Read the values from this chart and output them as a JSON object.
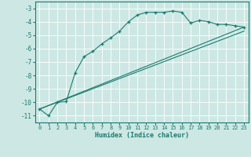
{
  "xlabel": "Humidex (Indice chaleur)",
  "bg_color": "#cde8e4",
  "line_color": "#1a7a6e",
  "grid_color": "#ffffff",
  "xlim": [
    -0.5,
    23.5
  ],
  "ylim": [
    -11.5,
    -2.5
  ],
  "yticks": [
    -11,
    -10,
    -9,
    -8,
    -7,
    -6,
    -5,
    -4,
    -3
  ],
  "xticks": [
    0,
    1,
    2,
    3,
    4,
    5,
    6,
    7,
    8,
    9,
    10,
    11,
    12,
    13,
    14,
    15,
    16,
    17,
    18,
    19,
    20,
    21,
    22,
    23
  ],
  "line1_x": [
    0,
    1,
    2,
    3,
    4,
    5,
    6,
    7,
    8,
    9,
    10,
    11,
    12,
    13,
    14,
    15,
    16,
    17,
    18,
    19,
    20,
    21,
    22,
    23
  ],
  "line1_y": [
    -10.5,
    -11.0,
    -10.0,
    -9.95,
    -7.8,
    -6.6,
    -6.2,
    -5.65,
    -5.2,
    -4.7,
    -4.0,
    -3.5,
    -3.3,
    -3.3,
    -3.3,
    -3.2,
    -3.3,
    -4.1,
    -3.9,
    -4.0,
    -4.2,
    -4.2,
    -4.3,
    -4.4
  ],
  "line2_x": [
    0,
    23
  ],
  "line2_y": [
    -10.5,
    -4.4
  ],
  "line3_x": [
    0,
    23
  ],
  "line3_y": [
    -10.5,
    -4.7
  ]
}
